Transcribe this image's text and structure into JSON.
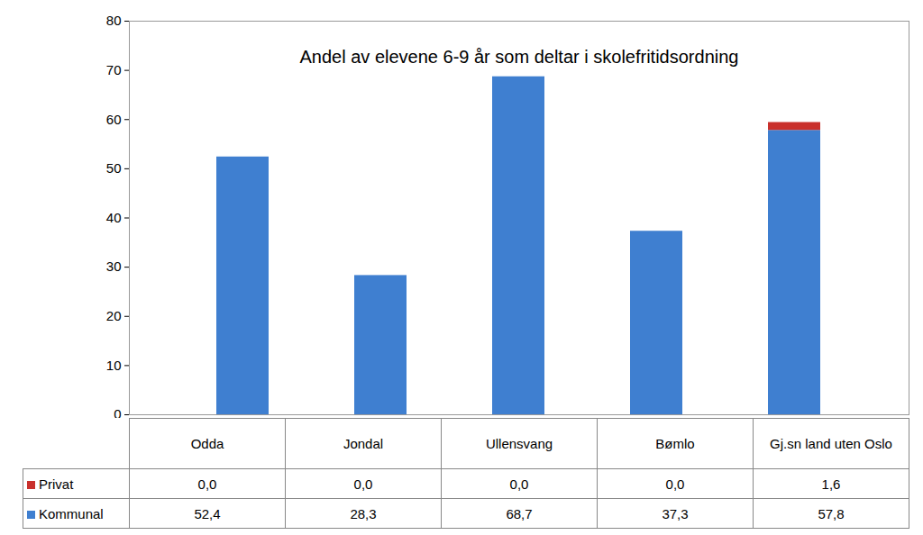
{
  "chart_data": {
    "type": "bar",
    "stacked": true,
    "title": "Andel av elevene 6-9 år som deltar i skolefritidsordning",
    "categories": [
      "Odda",
      "Jondal",
      "Ullensvang",
      "Bømlo",
      "Gj.sn land uten Oslo"
    ],
    "series": [
      {
        "name": "Kommunal",
        "color": "#3f7fd0",
        "values": [
          52.4,
          28.3,
          68.7,
          37.3,
          57.8
        ],
        "value_labels": [
          "52,4",
          "28,3",
          "68,7",
          "37,3",
          "57,8"
        ]
      },
      {
        "name": "Privat",
        "color": "#c9302c",
        "values": [
          0.0,
          0.0,
          0.0,
          0.0,
          1.6
        ],
        "value_labels": [
          "0,0",
          "0,0",
          "0,0",
          "0,0",
          "1,6"
        ]
      }
    ],
    "ylim": [
      0,
      80
    ],
    "yticks": [
      0,
      10,
      20,
      30,
      40,
      50,
      60,
      70,
      80
    ],
    "grid": false,
    "data_labels": true
  }
}
